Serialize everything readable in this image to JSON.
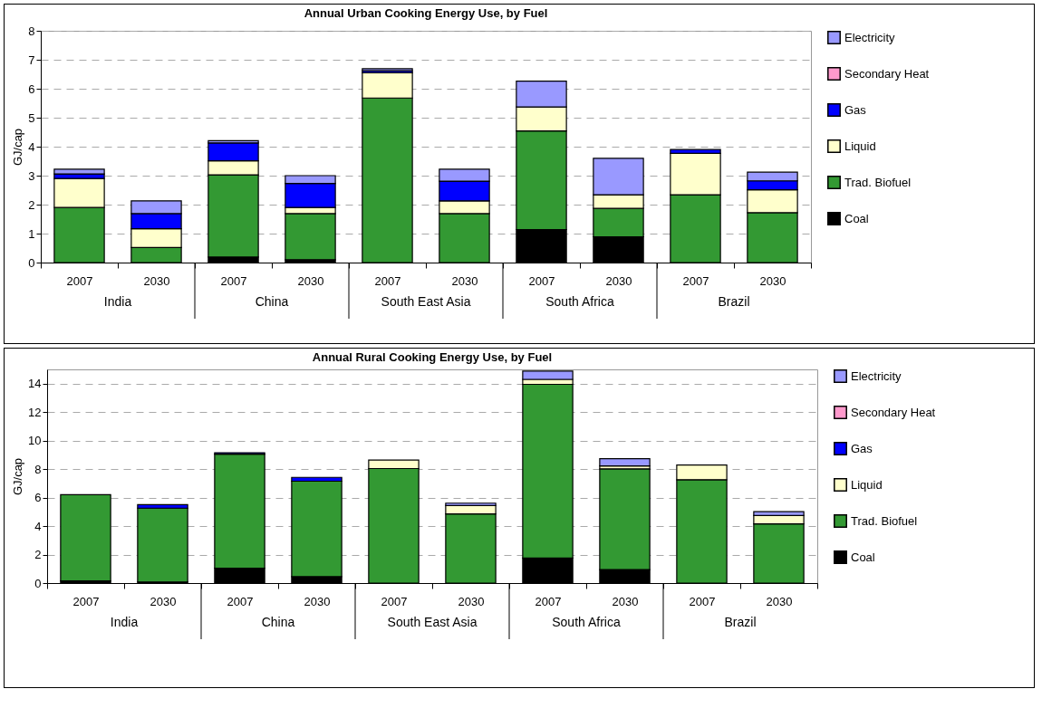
{
  "chart_data": [
    {
      "type": "bar",
      "title": "Annual Urban Cooking Energy Use, by Fuel",
      "ylabel": "GJ/cap",
      "stacked": true,
      "grid": "y",
      "legend": "right",
      "categories": [
        "2007",
        "2030",
        "2007",
        "2030",
        "2007",
        "2030",
        "2007",
        "2030",
        "2007",
        "2030"
      ],
      "annotations": [
        "India",
        "China",
        "South East Asia",
        "South Africa",
        "Brazil"
      ],
      "ylim": [
        0,
        8
      ],
      "yticks": [
        0,
        1,
        2,
        3,
        4,
        5,
        6,
        7,
        8
      ],
      "series": [
        {
          "name": "Coal",
          "color": "#000000",
          "values": [
            null,
            null,
            0.19,
            0.1,
            null,
            null,
            1.14,
            0.89,
            null,
            null
          ]
        },
        {
          "name": "Trad. Biofuel",
          "color": "#339933",
          "values": [
            1.9,
            0.52,
            2.84,
            1.59,
            5.68,
            1.69,
            3.4,
            0.98,
            2.34,
            1.72
          ]
        },
        {
          "name": "Liquid",
          "color": "#ffffcc",
          "values": [
            1.0,
            0.65,
            0.48,
            0.21,
            0.87,
            0.44,
            0.83,
            0.47,
            1.43,
            0.79
          ]
        },
        {
          "name": "Gas",
          "color": "#0000ff",
          "values": [
            0.16,
            0.52,
            0.62,
            0.83,
            0.07,
            0.68,
            null,
            null,
            0.13,
            0.31
          ]
        },
        {
          "name": "Secondary Heat",
          "color": "#ff99cc",
          "values": [
            null,
            null,
            null,
            null,
            null,
            null,
            null,
            null,
            null,
            null
          ]
        },
        {
          "name": "Electricity",
          "color": "#9999ff",
          "values": [
            0.16,
            0.44,
            0.08,
            0.27,
            0.07,
            0.41,
            0.89,
            1.26,
            null,
            0.3
          ]
        }
      ]
    },
    {
      "type": "bar",
      "title": "Annual Rural Cooking Energy Use, by Fuel",
      "ylabel": "GJ/cap",
      "stacked": true,
      "grid": "y",
      "legend": "right",
      "categories": [
        "2007",
        "2030",
        "2007",
        "2030",
        "2007",
        "2030",
        "2007",
        "2030",
        "2007",
        "2030"
      ],
      "annotations": [
        "India",
        "China",
        "South East Asia",
        "South Africa",
        "Brazil"
      ],
      "ylim": [
        0,
        15
      ],
      "yticks": [
        0,
        2,
        4,
        6,
        8,
        10,
        12,
        14
      ],
      "series": [
        {
          "name": "Coal",
          "color": "#000000",
          "values": [
            0.15,
            0.08,
            1.05,
            0.45,
            null,
            null,
            1.75,
            0.95,
            null,
            null
          ]
        },
        {
          "name": "Trad. Biofuel",
          "color": "#339933",
          "values": [
            6.05,
            5.18,
            8.0,
            6.7,
            8.04,
            4.85,
            12.2,
            7.07,
            7.26,
            4.16
          ]
        },
        {
          "name": "Liquid",
          "color": "#ffffcc",
          "values": [
            null,
            null,
            null,
            null,
            0.6,
            0.59,
            0.35,
            0.2,
            1.03,
            0.58
          ]
        },
        {
          "name": "Gas",
          "color": "#0000ff",
          "values": [
            null,
            0.25,
            0.1,
            0.27,
            null,
            null,
            null,
            null,
            null,
            null
          ]
        },
        {
          "name": "Secondary Heat",
          "color": "#ff99cc",
          "values": [
            null,
            null,
            null,
            null,
            null,
            null,
            null,
            null,
            null,
            null
          ]
        },
        {
          "name": "Electricity",
          "color": "#9999ff",
          "values": [
            null,
            null,
            null,
            null,
            null,
            0.17,
            0.58,
            0.51,
            null,
            0.27
          ]
        }
      ]
    }
  ]
}
